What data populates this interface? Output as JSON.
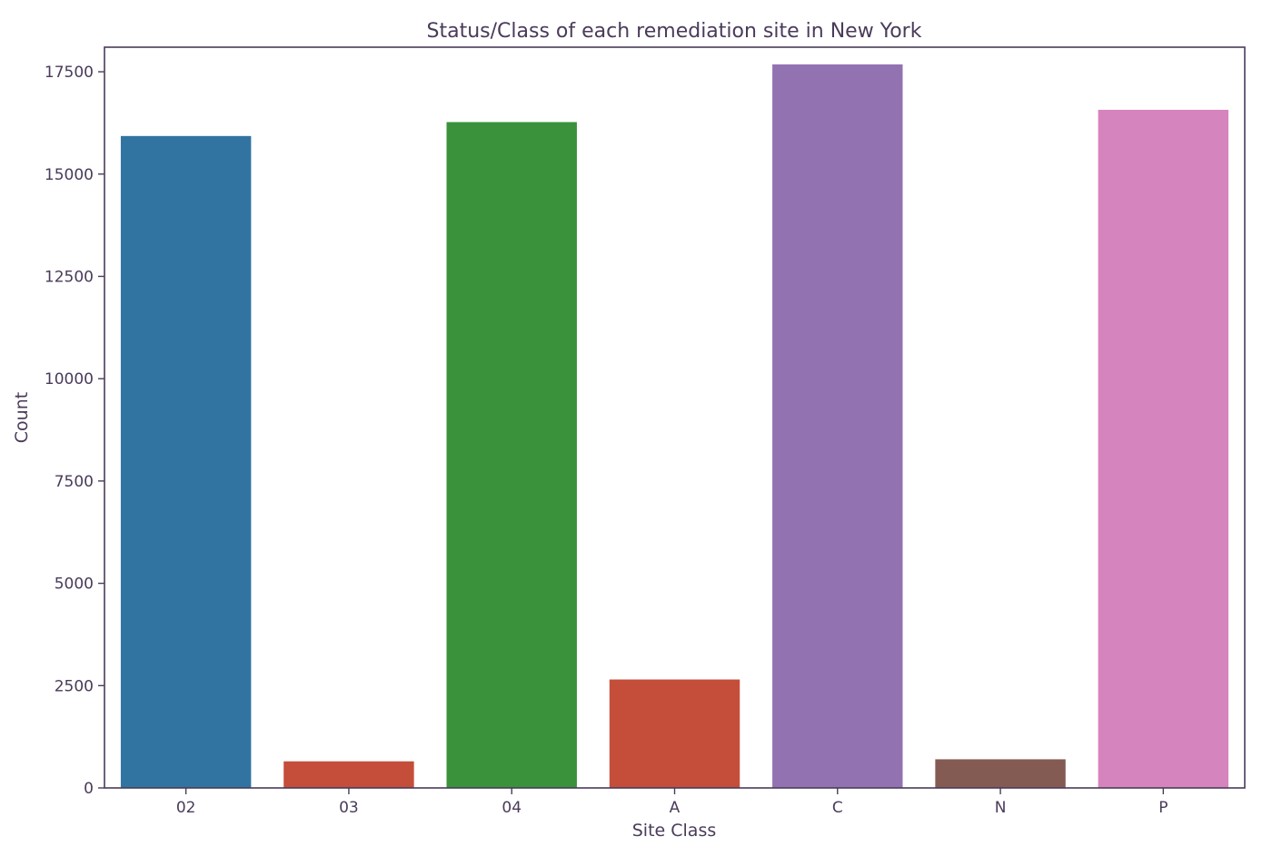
{
  "chart_data": {
    "type": "bar",
    "title": "Status/Class of each remediation site in New York",
    "xlabel": "Site Class",
    "ylabel": "Count",
    "categories": [
      "02",
      "03",
      "04",
      "A",
      "C",
      "N",
      "P"
    ],
    "values": [
      15930,
      650,
      16270,
      2650,
      17680,
      700,
      16570
    ],
    "colors": [
      "#3274a1",
      "#c44e3a",
      "#3a923a",
      "#c44e3a",
      "#9372b2",
      "#845b53",
      "#d684bd"
    ],
    "ylim": [
      0,
      18100
    ],
    "yticks": [
      0,
      2500,
      5000,
      7500,
      10000,
      12500,
      15000,
      17500
    ],
    "ytick_labels": [
      "0",
      "2500",
      "5000",
      "7500",
      "10000",
      "12500",
      "15000",
      "17500"
    ],
    "grid": false,
    "legend": "none"
  }
}
